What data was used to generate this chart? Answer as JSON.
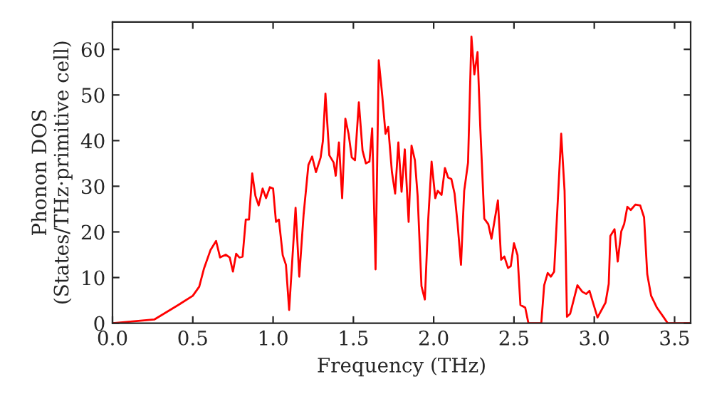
{
  "chart_data": {
    "type": "line",
    "xlabel": "Frequency (THz)",
    "ylabel": "Phonon DOS\n(States/THz·primitive cell)",
    "xlim": [
      0,
      3.6
    ],
    "ylim": [
      0,
      66
    ],
    "xticks": [
      {
        "value": 0,
        "label": "0.0"
      },
      {
        "value": 0.5,
        "label": "0.5"
      },
      {
        "value": 1,
        "label": "1.0"
      },
      {
        "value": 1.5,
        "label": "1.5"
      },
      {
        "value": 2,
        "label": "2.0"
      },
      {
        "value": 2.5,
        "label": "2.5"
      },
      {
        "value": 3,
        "label": "3.0"
      },
      {
        "value": 3.5,
        "label": "3.5"
      }
    ],
    "yticks": [
      0,
      10,
      20,
      30,
      40,
      50,
      60
    ],
    "grid": false,
    "legend": false,
    "series": [
      {
        "color": "#ff0000",
        "x": [
          0,
          0.26,
          0.41,
          0.5,
          0.54,
          0.57,
          0.61,
          0.645,
          0.67,
          0.705,
          0.73,
          0.75,
          0.77,
          0.79,
          0.81,
          0.83,
          0.85,
          0.87,
          0.89,
          0.91,
          0.935,
          0.956,
          0.98,
          1.0,
          1.018,
          1.036,
          1.06,
          1.08,
          1.1,
          1.14,
          1.163,
          1.19,
          1.22,
          1.243,
          1.267,
          1.296,
          1.31,
          1.326,
          1.35,
          1.377,
          1.39,
          1.41,
          1.43,
          1.45,
          1.47,
          1.49,
          1.51,
          1.534,
          1.557,
          1.578,
          1.6,
          1.617,
          1.638,
          1.658,
          1.68,
          1.7,
          1.717,
          1.74,
          1.76,
          1.78,
          1.8,
          1.82,
          1.844,
          1.862,
          1.883,
          1.9,
          1.924,
          1.945,
          1.966,
          1.987,
          2.01,
          2.025,
          2.049,
          2.07,
          2.09,
          2.11,
          2.13,
          2.149,
          2.17,
          2.19,
          2.214,
          2.235,
          2.253,
          2.273,
          2.29,
          2.315,
          2.34,
          2.36,
          2.38,
          2.4,
          2.42,
          2.44,
          2.463,
          2.48,
          2.5,
          2.522,
          2.54,
          2.57,
          2.59,
          2.67,
          2.688,
          2.71,
          2.73,
          2.75,
          2.776,
          2.794,
          2.815,
          2.83,
          2.85,
          2.895,
          2.925,
          2.95,
          2.97,
          3.02,
          3.07,
          3.09,
          3.1,
          3.126,
          3.146,
          3.168,
          3.186,
          3.206,
          3.227,
          3.256,
          3.286,
          3.31,
          3.33,
          3.354,
          3.39,
          3.43,
          3.457,
          3.6
        ],
        "values": [
          0,
          0.8,
          4,
          6,
          8,
          12,
          16,
          18,
          14.4,
          15,
          14.4,
          11.3,
          15.2,
          14.4,
          14.6,
          22.7,
          22.7,
          32.8,
          27.9,
          25.8,
          29.5,
          27.4,
          29.8,
          29.5,
          22.2,
          22.7,
          14.9,
          12.8,
          2.9,
          25.3,
          10.2,
          23.8,
          34.7,
          36.5,
          33.1,
          36.3,
          39.9,
          50.3,
          36.8,
          35.2,
          32.3,
          39.6,
          27.4,
          44.8,
          41.5,
          36.3,
          35.7,
          48.4,
          37.8,
          35,
          35.4,
          42.7,
          11.8,
          57.6,
          49.8,
          41.5,
          43,
          33.1,
          28.4,
          39.6,
          28.8,
          38.1,
          22.2,
          38.9,
          35.7,
          27.9,
          8.1,
          5.2,
          22.7,
          35.4,
          27.4,
          29,
          28.1,
          34,
          31.9,
          31.6,
          28.4,
          21.7,
          12.8,
          29,
          35.2,
          62.8,
          54.5,
          59.4,
          43,
          22.9,
          21.7,
          18.5,
          22.7,
          26.9,
          13.9,
          14.6,
          12.1,
          12.5,
          17.5,
          14.9,
          4,
          3.4,
          0,
          0,
          8.3,
          11,
          10.2,
          11.3,
          29,
          41.5,
          29,
          1.4,
          2.1,
          8.3,
          6.9,
          6.4,
          7.1,
          1.25,
          4.5,
          8.6,
          19.1,
          20.6,
          13.5,
          20.1,
          21.7,
          25.5,
          24.8,
          26,
          25.8,
          23.2,
          10.7,
          6,
          3.4,
          1.4,
          0,
          0
        ]
      }
    ]
  }
}
